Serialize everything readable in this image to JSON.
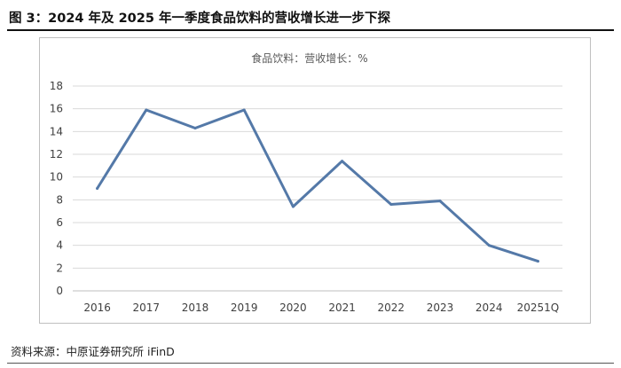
{
  "figure": {
    "title": "图 3：2024 年及 2025 年一季度食品饮料的营收增长进一步下探",
    "source": "资料来源：中原证券研究所 iFinD"
  },
  "chart_data": {
    "type": "line",
    "title": "食品饮料：营收增长：%",
    "categories": [
      "2016",
      "2017",
      "2018",
      "2019",
      "2020",
      "2021",
      "2022",
      "2023",
      "2024",
      "20251Q"
    ],
    "values": [
      9.0,
      15.9,
      14.3,
      15.9,
      7.4,
      11.4,
      7.6,
      7.9,
      4.0,
      2.6
    ],
    "yticks": [
      "0",
      "2",
      "4",
      "6",
      "8",
      "10",
      "12",
      "14",
      "16",
      "18"
    ],
    "ylim": [
      0,
      18
    ],
    "grid": true,
    "line_color": "#5479a8",
    "grid_color": "#d9d9d9",
    "legend": "none"
  }
}
